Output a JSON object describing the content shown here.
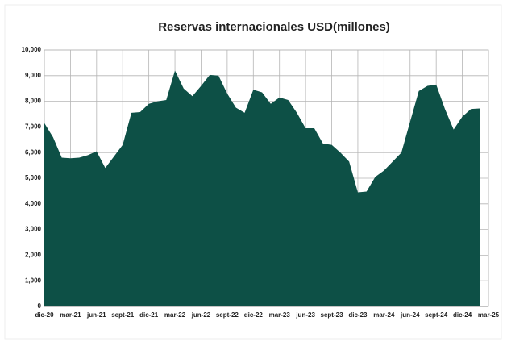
{
  "chart_data": {
    "type": "area",
    "title": "Reservas internacionales USD(millones)",
    "categories": [
      "dic-20",
      null,
      null,
      "mar-21",
      null,
      null,
      "jun-21",
      null,
      null,
      "sept-21",
      null,
      null,
      "dic-21",
      null,
      null,
      "mar-22",
      null,
      null,
      "jun-22",
      null,
      null,
      "sept-22",
      null,
      null,
      "dic-22",
      null,
      null,
      "mar-23",
      null,
      null,
      "jun-23",
      null,
      null,
      "sept-23",
      null,
      null,
      "dic-23",
      null,
      null,
      "mar-24",
      null,
      null,
      "jun-24",
      null,
      null,
      "sept-24",
      null,
      null,
      "dic-24",
      null,
      null,
      "mar-25"
    ],
    "values": [
      7150,
      6600,
      5800,
      5780,
      5800,
      5900,
      6050,
      5400,
      5850,
      6300,
      7550,
      7580,
      7900,
      8000,
      8050,
      9200,
      8500,
      8200,
      8600,
      9030,
      9000,
      8300,
      7750,
      7550,
      8450,
      8350,
      7900,
      8150,
      8050,
      7550,
      6950,
      6950,
      6350,
      6300,
      6000,
      5650,
      4450,
      4480,
      5050,
      5300,
      5650,
      6000,
      7200,
      8400,
      8600,
      8650,
      7700,
      6900,
      7400,
      7700,
      7720,
      null
    ],
    "color": "#0d5046",
    "ylim": [
      0,
      10000
    ],
    "yticks": [
      0,
      {
        "value": 1000,
        "label": "1,000"
      },
      {
        "value": 2000,
        "label": "2,000"
      },
      {
        "value": 3000,
        "label": "3,000"
      },
      {
        "value": 4000,
        "label": "4,000"
      },
      {
        "value": 5000,
        "label": "5,000"
      },
      {
        "value": 6000,
        "label": "6,000"
      },
      {
        "value": 7000,
        "label": "7,000"
      },
      {
        "value": 8000,
        "label": "8,000"
      },
      {
        "value": 9000,
        "label": "9,000"
      },
      {
        "value": 10000,
        "label": "10,000"
      }
    ],
    "grid": true
  }
}
